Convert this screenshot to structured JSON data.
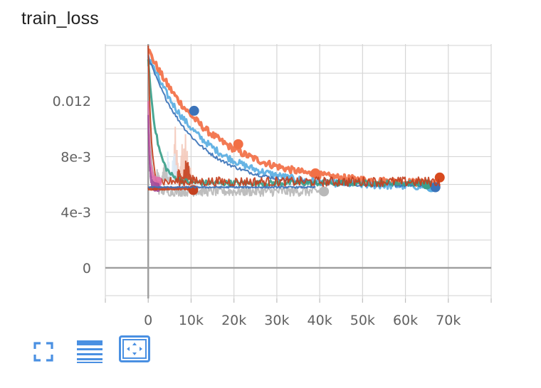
{
  "card": {
    "title": "train_loss"
  },
  "toolbar": [
    {
      "name": "fullscreen-button",
      "icon": "fullscreen-icon"
    },
    {
      "name": "toggle-y-log-button",
      "icon": "list-lines-icon"
    },
    {
      "name": "fit-domain-button",
      "icon": "fit-to-data-icon"
    }
  ],
  "colors": {
    "accent": "#4a90e2",
    "grid": "#d6d6d6",
    "axis": "#9e9e9e"
  },
  "chart_data": {
    "type": "line",
    "title": "train_loss",
    "xlabel": "",
    "ylabel": "",
    "xlim": [
      -10000,
      80000
    ],
    "ylim": [
      -0.0022,
      0.0161
    ],
    "grid": true,
    "x_ticks": [
      0,
      10000,
      20000,
      30000,
      40000,
      50000,
      60000,
      70000
    ],
    "x_tick_labels": [
      "0",
      "10k",
      "20k",
      "30k",
      "40k",
      "50k",
      "60k",
      "70k"
    ],
    "y_ticks": [
      0,
      0.004,
      0.008,
      0.012
    ],
    "y_tick_labels": [
      "0",
      "4e-3",
      "8e-3",
      "0.012"
    ],
    "series": [
      {
        "color": "#f26f45",
        "width": 4,
        "kind": "exp",
        "start": 0.0157,
        "end": 0.006,
        "tau": 15000,
        "xmax": 68000,
        "noise": 0.00025,
        "markers": [
          [
            21000,
            0.0089
          ],
          [
            39000,
            0.0068
          ]
        ],
        "end_marker": [
          68000,
          0.0065
        ],
        "end_marker_color": "#d84a1e"
      },
      {
        "color": "#5aaee2",
        "width": 3,
        "kind": "exp",
        "start": 0.0153,
        "end": 0.0058,
        "tau": 12500,
        "xmax": 66000,
        "noise": 0.00025,
        "markers": [],
        "end_marker": [
          66000,
          0.0058
        ]
      },
      {
        "color": "#3b73b9",
        "width": 2,
        "kind": "exp",
        "start": 0.0152,
        "end": 0.0059,
        "tau": 10500,
        "xmax": 67000,
        "noise": 0.00012,
        "markers": [
          [
            10700,
            0.0113
          ]
        ],
        "end_marker": [
          67000,
          0.0058
        ]
      },
      {
        "color": "#3aa08a",
        "width": 3,
        "kind": "exp",
        "start": 0.015,
        "end": 0.0061,
        "tau": 2000,
        "xmax": 65000,
        "noise": 0.0002,
        "markers": [],
        "end_marker": [
          65000,
          0.006
        ]
      },
      {
        "color": "#b8b8b8",
        "width": 2,
        "kind": "exp",
        "start": 0.0145,
        "end": 0.0055,
        "tau": 600,
        "xmax": 41000,
        "noise": 0.00035,
        "markers": [],
        "end_marker": [
          41000,
          0.0055
        ]
      },
      {
        "color": "#c4401e",
        "width": 2,
        "kind": "exp",
        "start": 0.016,
        "end": 0.0062,
        "tau": 600,
        "xmax": 68000,
        "noise": 0.00035,
        "markers": [],
        "end_marker": null
      },
      {
        "color": "#e06faa",
        "width": 2,
        "kind": "exp",
        "start": 0.012,
        "end": 0.0062,
        "tau": 400,
        "xmax": 3000,
        "noise": 0.0003,
        "markers": [],
        "end_marker": null
      },
      {
        "color": "#a24a98",
        "width": 2,
        "kind": "exp",
        "start": 0.011,
        "end": 0.0058,
        "tau": 300,
        "xmax": 2500,
        "noise": 0.0003,
        "markers": [],
        "end_marker": null
      },
      {
        "color": "#c4401e",
        "width": 2,
        "kind": "flat",
        "start": 0.0057,
        "end": 0.0057,
        "tau": 1,
        "xmax": 10500,
        "noise": 0.0001,
        "markers": [],
        "end_marker": [
          10500,
          0.0056
        ],
        "end_marker_color": "#c4401e"
      },
      {
        "color": "#3b73b9",
        "width": 2,
        "kind": "flat",
        "start": 0.0058,
        "end": 0.0058,
        "tau": 1,
        "xmax": 39000,
        "noise": 6e-05,
        "markers": [],
        "end_marker": null
      }
    ],
    "spikes": [
      {
        "color": "#f4c9ba",
        "x_from": 6000,
        "x_to": 10000,
        "peak": 0.0105
      },
      {
        "color": "#d9eaf7",
        "x_from": 4500,
        "x_to": 7000,
        "peak": 0.009
      },
      {
        "color": "#c4401e",
        "x_from": 6800,
        "x_to": 10500,
        "peak": 0.008
      },
      {
        "color": "#bdbdbd",
        "x_from": 2000,
        "x_to": 5000,
        "peak": 0.0075
      }
    ]
  }
}
